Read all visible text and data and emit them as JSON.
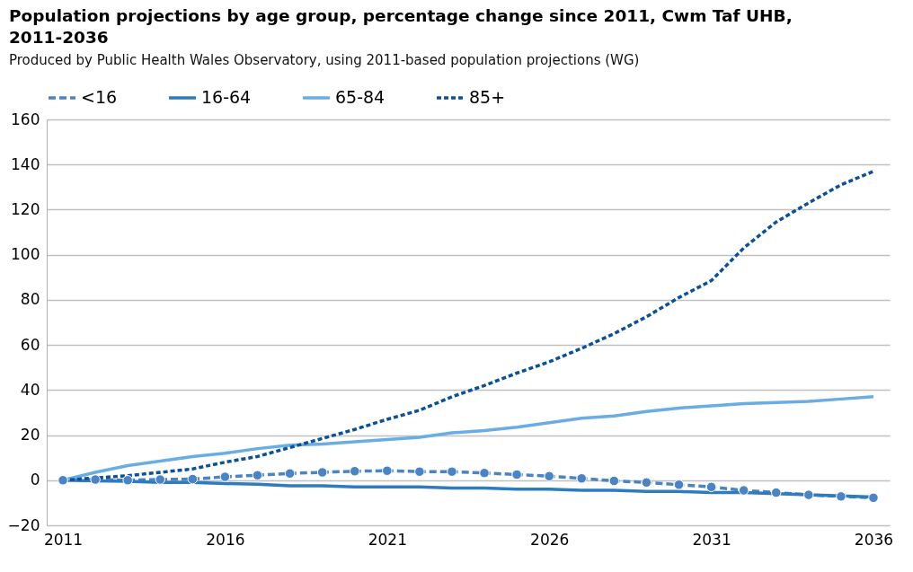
{
  "chart_data": {
    "type": "line",
    "title": "Population projections by age group, percentage change since 2011, Cwm Taf UHB, 2011-2036",
    "subtitle": "Produced by Public Health Wales Observatory, using 2011-based population projections (WG)",
    "x": [
      2011,
      2012,
      2013,
      2014,
      2015,
      2016,
      2017,
      2018,
      2019,
      2020,
      2021,
      2022,
      2023,
      2024,
      2025,
      2026,
      2027,
      2028,
      2029,
      2030,
      2031,
      2032,
      2033,
      2034,
      2035,
      2036
    ],
    "series": [
      {
        "name": "<16",
        "color": "#4a84c4",
        "marker": "circle",
        "line_style": "dashed",
        "values": [
          0,
          0.3,
          0,
          0.3,
          0.5,
          1.5,
          2.2,
          3,
          3.5,
          4,
          4.2,
          3.8,
          3.8,
          3.2,
          2.5,
          1.8,
          0.8,
          -0.3,
          -1,
          -2,
          -3,
          -4.5,
          -5.5,
          -6.5,
          -7.2,
          -7.8
        ]
      },
      {
        "name": "16-64",
        "color": "#2e7bbf",
        "line_style": "solid",
        "values": [
          0,
          -0.3,
          -0.5,
          -1,
          -1,
          -1.5,
          -1.8,
          -2.5,
          -2.5,
          -3,
          -3,
          -3,
          -3.5,
          -3.5,
          -4,
          -4,
          -4.5,
          -4.5,
          -5,
          -5,
          -5.5,
          -5.5,
          -6,
          -6.5,
          -7,
          -7.5
        ]
      },
      {
        "name": "65-84",
        "color": "#6aade4",
        "line_style": "solid",
        "values": [
          0,
          3.5,
          6.5,
          8.5,
          10.5,
          12,
          14,
          15.5,
          16,
          17,
          18,
          19,
          21,
          22,
          23.5,
          25.5,
          27.5,
          28.5,
          30.5,
          32,
          33,
          34,
          34.5,
          35,
          36,
          37
        ]
      },
      {
        "name": "85+",
        "color": "#0b519a",
        "line_style": "dotted",
        "values": [
          0,
          1,
          2,
          3.5,
          5,
          8,
          10.5,
          14.5,
          18.5,
          22.5,
          27,
          31,
          37,
          42,
          47.5,
          52.5,
          58.5,
          65,
          72.5,
          81,
          88.5,
          103,
          114.5,
          123,
          131,
          137
        ]
      }
    ],
    "xlim": [
      2010.5,
      2036.5
    ],
    "xticks": [
      2011,
      2016,
      2021,
      2026,
      2031,
      2036
    ],
    "ylim": [
      -20,
      160
    ],
    "yticks": [
      -20,
      0,
      20,
      40,
      60,
      80,
      100,
      120,
      140,
      160
    ],
    "grid": "y",
    "legend": "top"
  }
}
